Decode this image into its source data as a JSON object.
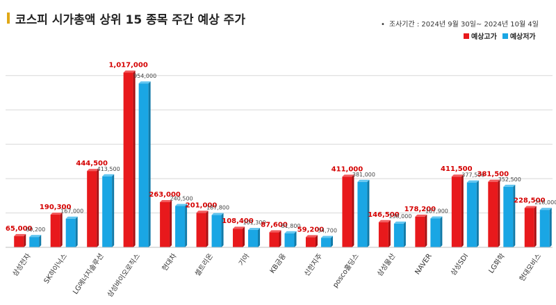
{
  "title": "코스피 시가총액 상위 15 종목 주간 예상 주가",
  "survey_period": "조사기간 : 2024년 9월 30일~ 2024년 10월 4일",
  "colors": {
    "high": "#e8191c",
    "low": "#1aa6e4",
    "high_label": "#d40000",
    "low_label": "#444444",
    "grid": "#d8d8d8",
    "accent": "#e0a817"
  },
  "chart_data": {
    "type": "bar",
    "categories": [
      "삼성전자",
      "SK하이닉스",
      "LG에너지솔루션",
      "삼성바이오로직스",
      "현대차",
      "셀트리온",
      "기아",
      "KB금융",
      "신한지주",
      "posco홀딩스",
      "삼성물산",
      "NAVER",
      "삼성SDI",
      "LG화학",
      "현대모비스"
    ],
    "series": [
      {
        "name": "예상고가",
        "values": [
          65000,
          190300,
          444500,
          1017000,
          263000,
          201000,
          108400,
          87600,
          59200,
          411000,
          146500,
          178200,
          411500,
          381500,
          228500
        ],
        "labels": [
          "65,000",
          "190,300",
          "444,500",
          "1,017,000",
          "263,000",
          "201,000",
          "108,400",
          "87,600",
          "59,200",
          "411,000",
          "146,500",
          "178,200",
          "411,500",
          "381,500",
          "228,500"
        ]
      },
      {
        "name": "예상저가",
        "values": [
          60200,
          167000,
          413500,
          954000,
          240500,
          187800,
          101300,
          81800,
          54700,
          381000,
          138000,
          167900,
          377500,
          352500,
          218000
        ],
        "labels": [
          "60,200",
          "167,000",
          "413,500",
          "954,000",
          "240,500",
          "187,800",
          "101,300",
          "81,800",
          "54,700",
          "381,000",
          "138,000",
          "167,900",
          "377,500",
          "352,500",
          "218,000"
        ]
      }
    ],
    "ylim": [
      0,
      1100000
    ],
    "grid": true,
    "legend_position": "top-right"
  }
}
